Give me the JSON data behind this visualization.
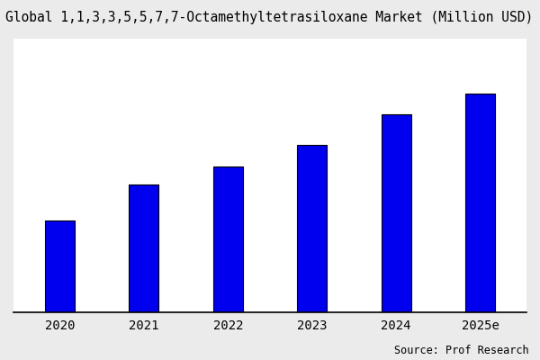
{
  "title": "Global 1,1,3,3,5,5,7,7-Octamethyltetrasiloxane Market (Million USD)",
  "categories": [
    "2020",
    "2021",
    "2022",
    "2023",
    "2024",
    "2025e"
  ],
  "values": [
    30,
    42,
    48,
    55,
    65,
    72
  ],
  "bar_color": "#0000EE",
  "figure_bg_color": "#EBEBEB",
  "plot_bg_color": "#FFFFFF",
  "source_text": "Source: Prof Research",
  "title_fontsize": 10.5,
  "tick_fontsize": 10,
  "source_fontsize": 8.5,
  "bar_width": 0.35,
  "ylim": [
    0,
    90
  ],
  "edgecolor": "#000000",
  "linewidth": 0.8
}
